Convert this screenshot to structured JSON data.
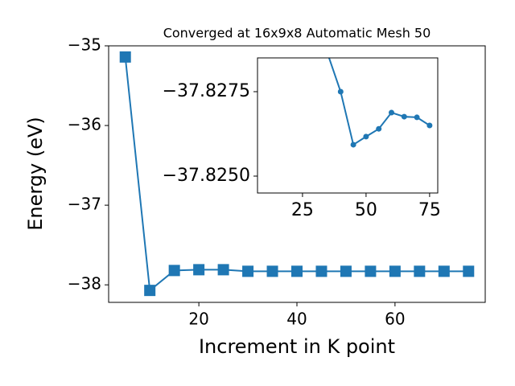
{
  "chart_data": [
    {
      "type": "line",
      "title": "Converged at 16x9x8 Automatic Mesh 50",
      "xlabel": "Increment in K point",
      "ylabel": "Energy (eV)",
      "x": [
        5,
        10,
        15,
        20,
        25,
        30,
        35,
        40,
        45,
        50,
        55,
        60,
        65,
        70,
        75
      ],
      "series": [
        {
          "color": "#1f77b4",
          "marker": "square",
          "values": [
            -35.14,
            -38.07,
            -37.82,
            -37.81,
            -37.81,
            -37.83,
            -37.83,
            -37.83,
            -37.83,
            -37.83,
            -37.83,
            -37.83,
            -37.83,
            -37.83,
            -37.83
          ]
        }
      ],
      "xlim": [
        1.6,
        78.4
      ],
      "ylim": [
        -38.22,
        -35.0
      ],
      "xticks": [
        20,
        40,
        60
      ],
      "yticks": [
        {
          "value": -35,
          "label": "−35"
        },
        {
          "value": -36,
          "label": "−36"
        },
        {
          "value": -37,
          "label": "−37"
        },
        {
          "value": -38,
          "label": "−38"
        }
      ]
    },
    {
      "type": "line",
      "x": [
        35,
        40,
        45,
        50,
        55,
        60,
        65,
        70,
        75
      ],
      "series": [
        {
          "color": "#1f77b4",
          "marker": "circle",
          "values": [
            -37.8286,
            -37.8275,
            -37.82593,
            -37.82617,
            -37.8264,
            -37.82688,
            -37.82676,
            -37.82674,
            -37.8265
          ]
        }
      ],
      "xlim": [
        7.3,
        78.2
      ],
      "ylim": [
        -37.8245,
        -37.8285
      ],
      "xticks": [
        25,
        50,
        75
      ],
      "yticks": [
        {
          "value": -37.8275,
          "label": "−37.8275"
        },
        {
          "value": -37.825,
          "label": "−37.8250"
        }
      ]
    }
  ]
}
